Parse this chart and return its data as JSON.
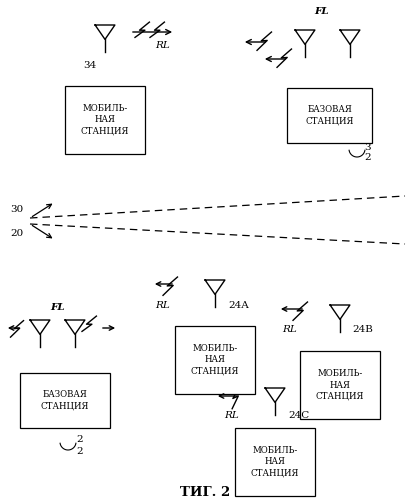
{
  "fig_label": "ΤИГ. 2",
  "background_color": "#ffffff",
  "line_color": "#000000",
  "figsize": [
    4.1,
    5.0
  ],
  "dpi": 100,
  "xlim": [
    0,
    410
  ],
  "ylim": [
    0,
    500
  ]
}
